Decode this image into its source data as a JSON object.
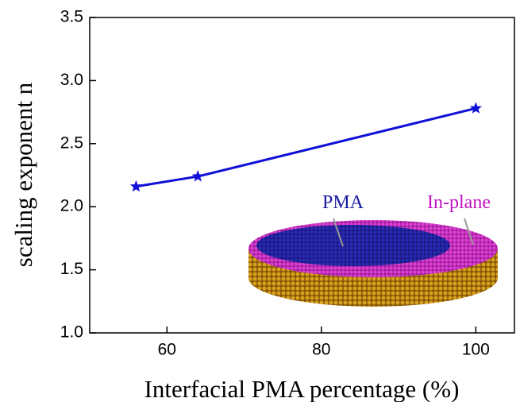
{
  "chart_data": {
    "type": "line",
    "x_label": "Interfacial PMA percentage (%)",
    "y_label": "scaling exponent n",
    "x": [
      56,
      64,
      100
    ],
    "series": [
      {
        "name": "scaling exponent",
        "color": "#1010d8",
        "marker": "star",
        "values": [
          2.16,
          2.24,
          2.78
        ]
      }
    ],
    "xlim": [
      50,
      105
    ],
    "ylim": [
      1.0,
      3.5
    ],
    "xticks": [
      60,
      80,
      100
    ],
    "yticks": [
      {
        "value": 1.0,
        "label": "1.0"
      },
      {
        "value": 1.5,
        "label": "1.5"
      },
      {
        "value": 2.0,
        "label": "2.0"
      },
      {
        "value": 2.5,
        "label": "2.5"
      },
      {
        "value": 3.0,
        "label": "3.0"
      },
      {
        "value": 3.5,
        "label": "3.5"
      }
    ],
    "annotations": [
      {
        "text": "PMA",
        "color": "#1a1aa0"
      },
      {
        "text": "In-plane",
        "color": "#c010c0"
      }
    ]
  }
}
